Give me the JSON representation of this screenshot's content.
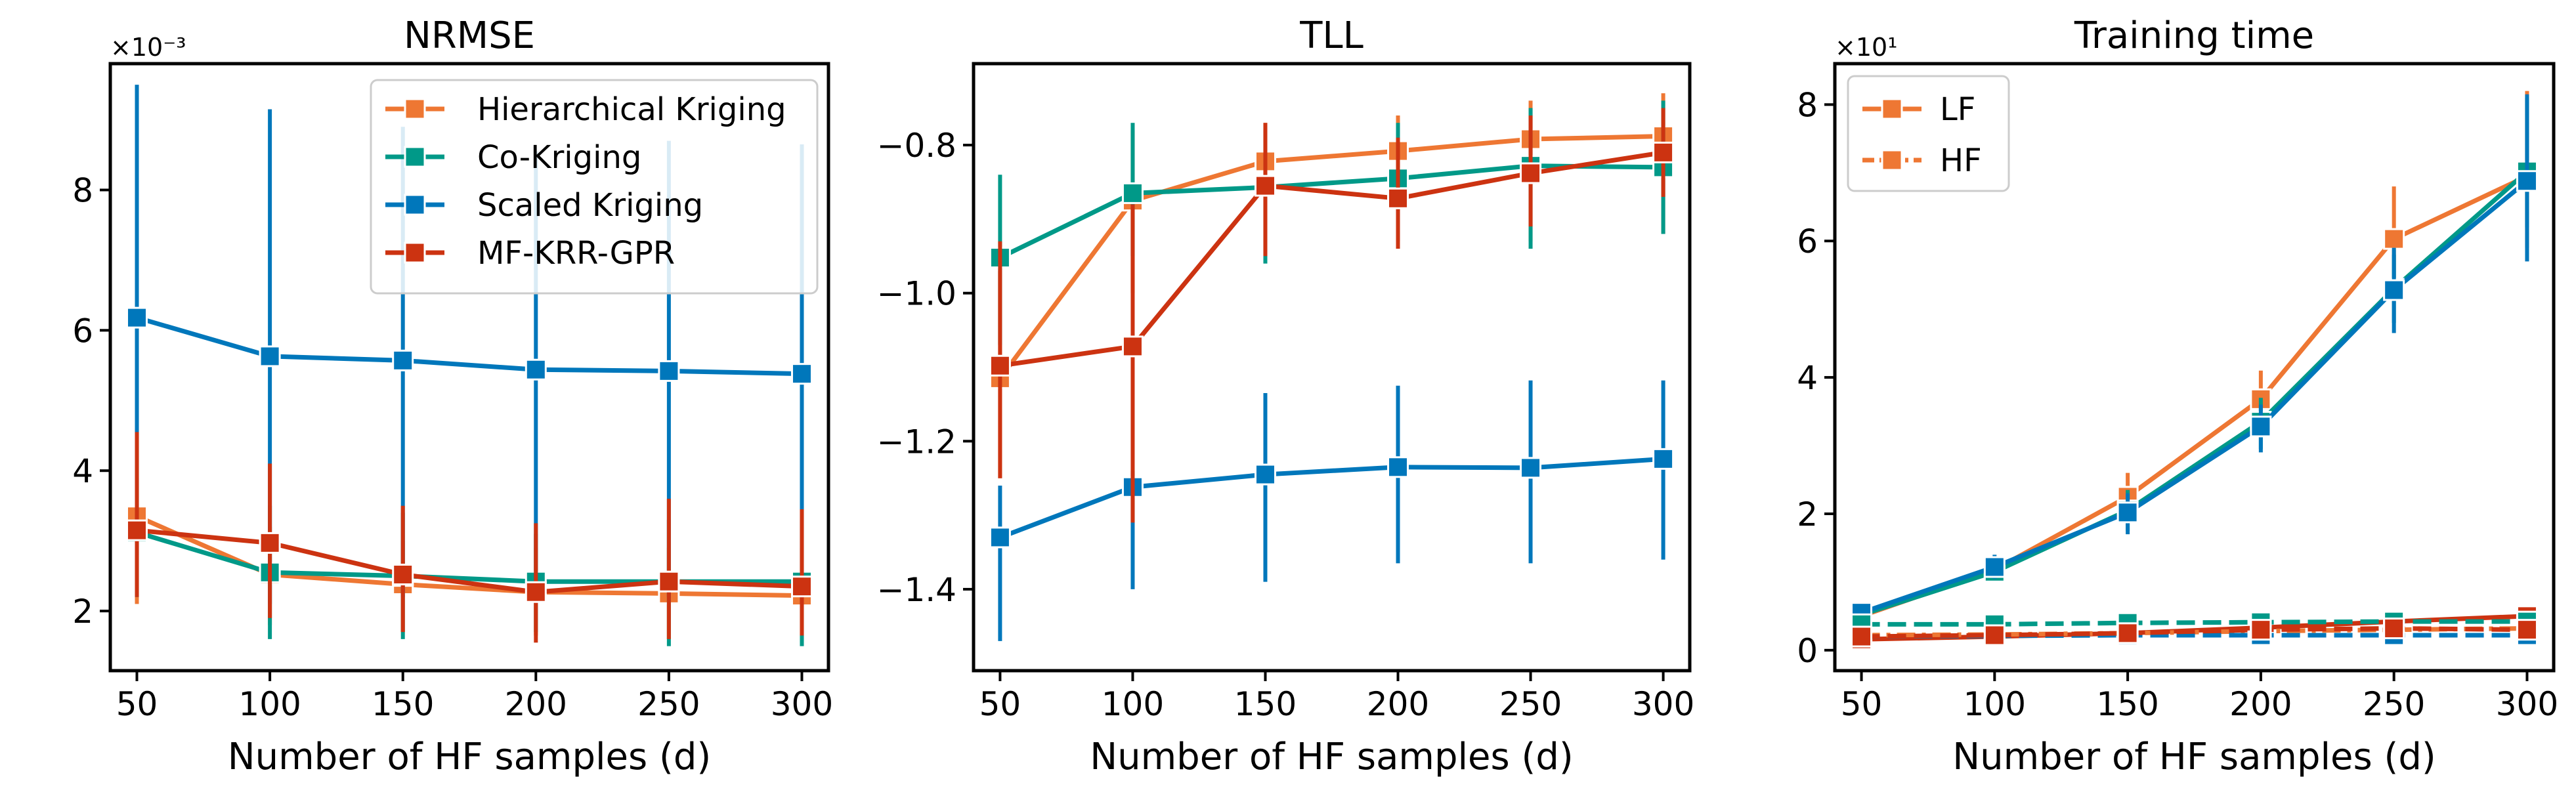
{
  "colors": {
    "hk": "#EE7733",
    "ck": "#009988",
    "sk": "#0077BB",
    "mf": "#CC3311"
  },
  "chart_data": [
    {
      "type": "line",
      "title": "NRMSE",
      "xlabel": "Number of HF samples (d)",
      "ylabel": "",
      "multiplier": "×10⁻³",
      "x": [
        50,
        100,
        150,
        200,
        250,
        300
      ],
      "xticks": [
        "50",
        "100",
        "150",
        "200",
        "250",
        "300"
      ],
      "xlim": [
        40,
        310
      ],
      "yticks": [
        2,
        4,
        6,
        8
      ],
      "yticklabels": [
        "2",
        "4",
        "6",
        "8"
      ],
      "ylim": [
        1.15,
        9.8
      ],
      "legend": "top-right",
      "series": [
        {
          "name": "Hierarchical Kriging",
          "color": "hk",
          "dash": "solid",
          "values": [
            3.35,
            2.52,
            2.38,
            2.27,
            2.25,
            2.22
          ],
          "err": [
            [
              2.1,
              4.6
            ],
            [
              1.8,
              3.2
            ],
            [
              1.7,
              3.0
            ],
            [
              1.65,
              2.9
            ],
            [
              1.6,
              2.9
            ],
            [
              1.55,
              2.9
            ]
          ]
        },
        {
          "name": "Co-Kriging",
          "color": "ck",
          "dash": "solid",
          "values": [
            3.12,
            2.55,
            2.5,
            2.42,
            2.42,
            2.42
          ],
          "err": [
            [
              2.2,
              3.9
            ],
            [
              1.6,
              3.5
            ],
            [
              1.6,
              3.4
            ],
            [
              1.7,
              3.1
            ],
            [
              1.5,
              3.3
            ],
            [
              1.5,
              3.3
            ]
          ]
        },
        {
          "name": "Scaled Kriging",
          "color": "sk",
          "dash": "solid",
          "values": [
            6.18,
            5.63,
            5.57,
            5.44,
            5.42,
            5.38
          ],
          "err": [
            [
              2.8,
              9.5
            ],
            [
              2.1,
              9.15
            ],
            [
              2.2,
              8.9
            ],
            [
              2.3,
              8.55
            ],
            [
              2.2,
              8.7
            ],
            [
              2.1,
              8.65
            ]
          ]
        },
        {
          "name": "MF-KRR-GPR",
          "color": "mf",
          "dash": "solid",
          "values": [
            3.15,
            2.97,
            2.52,
            2.27,
            2.42,
            2.35
          ],
          "err": [
            [
              2.2,
              4.55
            ],
            [
              1.9,
              4.1
            ],
            [
              1.7,
              3.5
            ],
            [
              1.55,
              3.25
            ],
            [
              1.6,
              3.6
            ],
            [
              1.65,
              3.45
            ]
          ]
        }
      ]
    },
    {
      "type": "line",
      "title": "TLL",
      "xlabel": "Number of HF samples (d)",
      "ylabel": "",
      "x": [
        50,
        100,
        150,
        200,
        250,
        300
      ],
      "xticks": [
        "50",
        "100",
        "150",
        "200",
        "250",
        "300"
      ],
      "xlim": [
        40,
        310
      ],
      "yticks": [
        -1.4,
        -1.2,
        -1.0,
        -0.8
      ],
      "yticklabels": [
        "−1.4",
        "−1.2",
        "−1.0",
        "−0.8"
      ],
      "ylim": [
        -1.51,
        -0.69
      ],
      "series": [
        {
          "name": "Hierarchical Kriging",
          "color": "hk",
          "dash": "solid",
          "values": [
            -1.115,
            -0.875,
            -0.822,
            -0.808,
            -0.792,
            -0.788
          ],
          "err": [
            [
              -1.25,
              -0.97
            ],
            [
              -1.0,
              -0.78
            ],
            [
              -0.95,
              -0.77
            ],
            [
              -0.93,
              -0.76
            ],
            [
              -0.93,
              -0.74
            ],
            [
              -0.92,
              -0.73
            ]
          ]
        },
        {
          "name": "Co-Kriging",
          "color": "ck",
          "dash": "solid",
          "values": [
            -0.952,
            -0.865,
            -0.857,
            -0.845,
            -0.828,
            -0.83
          ],
          "err": [
            [
              -1.07,
              -0.84
            ],
            [
              -0.95,
              -0.77
            ],
            [
              -0.96,
              -0.78
            ],
            [
              -0.93,
              -0.77
            ],
            [
              -0.94,
              -0.75
            ],
            [
              -0.92,
              -0.74
            ]
          ]
        },
        {
          "name": "Scaled Kriging",
          "color": "sk",
          "dash": "solid",
          "values": [
            -1.33,
            -1.262,
            -1.245,
            -1.235,
            -1.236,
            -1.224
          ],
          "err": [
            [
              -1.47,
              -1.26
            ],
            [
              -1.4,
              -1.24
            ],
            [
              -1.39,
              -1.135
            ],
            [
              -1.365,
              -1.125
            ],
            [
              -1.365,
              -1.118
            ],
            [
              -1.36,
              -1.118
            ]
          ]
        },
        {
          "name": "MF-KRR-GPR",
          "color": "mf",
          "dash": "solid",
          "values": [
            -1.098,
            -1.072,
            -0.855,
            -0.872,
            -0.838,
            -0.81
          ],
          "err": [
            [
              -1.25,
              -0.93
            ],
            [
              -1.31,
              -0.88
            ],
            [
              -0.95,
              -0.77
            ],
            [
              -0.94,
              -0.79
            ],
            [
              -0.91,
              -0.76
            ],
            [
              -0.87,
              -0.75
            ]
          ]
        }
      ]
    },
    {
      "type": "line",
      "title": "Training time",
      "xlabel": "Number of HF samples (d)",
      "ylabel": "",
      "multiplier": "×10¹",
      "x": [
        50,
        100,
        150,
        200,
        250,
        300
      ],
      "xticks": [
        "50",
        "100",
        "150",
        "200",
        "250",
        "300"
      ],
      "xlim": [
        40,
        310
      ],
      "yticks": [
        0,
        2,
        4,
        6,
        8
      ],
      "yticklabels": [
        "0",
        "2",
        "4",
        "6",
        "8"
      ],
      "ylim": [
        -0.3,
        8.6
      ],
      "legend": "top-left",
      "legend_entries": [
        {
          "name": "LF",
          "color": "hk",
          "dash": "solid"
        },
        {
          "name": "HF",
          "color": "hk",
          "dash": "dashdot"
        }
      ],
      "series": [
        {
          "color": "hk",
          "dash": "solid",
          "values": [
            0.5,
            1.18,
            2.25,
            3.68,
            6.03,
            6.95
          ],
          "err": [
            [
              0.4,
              0.62
            ],
            [
              1.0,
              1.35
            ],
            [
              1.9,
              2.6
            ],
            [
              3.2,
              4.1
            ],
            [
              5.3,
              6.8
            ],
            [
              5.9,
              8.2
            ]
          ]
        },
        {
          "color": "ck",
          "dash": "solid",
          "values": [
            0.52,
            1.15,
            2.05,
            3.35,
            5.3,
            7.02
          ],
          "err": [
            [
              0.42,
              0.62
            ],
            [
              1.0,
              1.3
            ],
            [
              1.75,
              2.35
            ],
            [
              2.95,
              3.7
            ],
            [
              4.8,
              5.8
            ],
            [
              6.2,
              8.1
            ]
          ]
        },
        {
          "color": "sk",
          "dash": "solid",
          "values": [
            0.55,
            1.22,
            2.02,
            3.28,
            5.28,
            6.88
          ],
          "err": [
            [
              0.45,
              0.65
            ],
            [
              1.05,
              1.4
            ],
            [
              1.7,
              2.3
            ],
            [
              2.9,
              3.6
            ],
            [
              4.65,
              5.9
            ],
            [
              5.7,
              8.15
            ]
          ]
        },
        {
          "color": "mf",
          "dash": "solid",
          "values": [
            0.16,
            0.2,
            0.25,
            0.33,
            0.42,
            0.5
          ],
          "err": [
            [
              0.1,
              0.24
            ],
            [
              0.14,
              0.28
            ],
            [
              0.18,
              0.34
            ],
            [
              0.24,
              0.44
            ],
            [
              0.32,
              0.54
            ],
            [
              0.38,
              0.62
            ]
          ]
        },
        {
          "color": "hk",
          "dash": "dashdot",
          "values": [
            0.22,
            0.23,
            0.25,
            0.28,
            0.3,
            0.32
          ],
          "err": [
            [
              0.12,
              0.32
            ],
            [
              0.12,
              0.34
            ],
            [
              0.14,
              0.36
            ],
            [
              0.16,
              0.4
            ],
            [
              0.18,
              0.42
            ],
            [
              0.2,
              0.44
            ]
          ]
        },
        {
          "color": "ck",
          "dash": "dashed",
          "values": [
            0.38,
            0.38,
            0.4,
            0.41,
            0.42,
            0.42
          ],
          "err": [
            [
              0.3,
              0.46
            ],
            [
              0.3,
              0.46
            ],
            [
              0.32,
              0.48
            ],
            [
              0.33,
              0.5
            ],
            [
              0.34,
              0.5
            ],
            [
              0.34,
              0.5
            ]
          ]
        },
        {
          "color": "sk",
          "dash": "dashed",
          "values": [
            0.2,
            0.21,
            0.22,
            0.22,
            0.22,
            0.22
          ],
          "err": [
            [
              0.12,
              0.28
            ],
            [
              0.13,
              0.29
            ],
            [
              0.14,
              0.3
            ],
            [
              0.14,
              0.3
            ],
            [
              0.14,
              0.3
            ],
            [
              0.14,
              0.3
            ]
          ]
        },
        {
          "color": "mf",
          "dash": "dashed",
          "values": [
            0.2,
            0.22,
            0.25,
            0.3,
            0.32,
            0.3
          ],
          "err": [
            [
              0.12,
              0.28
            ],
            [
              0.14,
              0.3
            ],
            [
              0.16,
              0.34
            ],
            [
              0.2,
              0.4
            ],
            [
              0.22,
              0.42
            ],
            [
              0.2,
              0.4
            ]
          ]
        }
      ]
    }
  ]
}
